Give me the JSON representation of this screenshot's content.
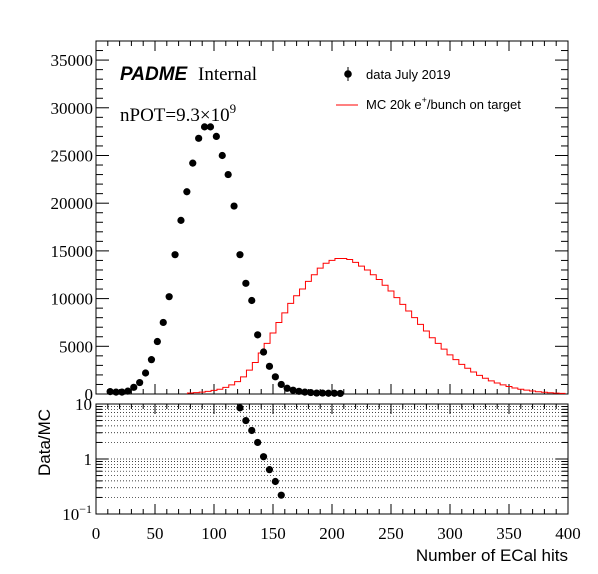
{
  "chart_data": [
    {
      "type": "scatter",
      "panel": "main",
      "xlim": [
        0,
        400
      ],
      "ylim": [
        0,
        37000
      ],
      "y_ticks": [
        0,
        5000,
        10000,
        15000,
        20000,
        25000,
        30000,
        35000
      ],
      "y_tick_labels": [
        "0",
        "5000",
        "10000",
        "15000",
        "20000",
        "25000",
        "30000",
        "35000"
      ],
      "grid": false,
      "legend_placement": "top-right",
      "annotations": {
        "experiment": "PADME",
        "status": "Internal",
        "npot_prefix": "nPOT=9.3×10",
        "npot_exponent": "9"
      },
      "legend": {
        "data_label": "data July 2019",
        "mc_label_prefix": "MC 20k e",
        "mc_label_sup": "+",
        "mc_label_suffix": "/bunch on target"
      },
      "series": [
        {
          "name": "data July 2019",
          "style": "markers",
          "color": "#000000",
          "x": [
            12,
            17,
            22,
            27,
            32,
            37,
            42,
            47,
            52,
            57,
            62,
            67,
            72,
            77,
            82,
            87,
            92,
            97,
            102,
            107,
            112,
            117,
            122,
            127,
            132,
            137,
            142,
            147,
            152,
            157,
            162,
            167,
            172,
            177,
            182,
            187,
            192,
            197,
            202,
            207
          ],
          "y": [
            250,
            200,
            200,
            300,
            700,
            1200,
            2200,
            3600,
            5500,
            7500,
            10200,
            14600,
            18200,
            21200,
            24200,
            26800,
            28000,
            28000,
            27000,
            25000,
            23000,
            19700,
            14600,
            11600,
            9800,
            6200,
            4400,
            2900,
            1800,
            1000,
            600,
            400,
            280,
            200,
            150,
            100,
            100,
            80,
            80,
            60
          ]
        },
        {
          "name": "MC 20k e+/bunch on target",
          "style": "step",
          "color": "#ff0000",
          "bin_width": 5,
          "x": [
            80,
            85,
            90,
            95,
            100,
            105,
            110,
            115,
            120,
            125,
            130,
            135,
            140,
            145,
            150,
            155,
            160,
            165,
            170,
            175,
            180,
            185,
            190,
            195,
            200,
            205,
            210,
            215,
            220,
            225,
            230,
            235,
            240,
            245,
            250,
            255,
            260,
            265,
            270,
            275,
            280,
            285,
            290,
            295,
            300,
            305,
            310,
            315,
            320,
            325,
            330,
            335,
            340,
            345,
            350,
            355,
            360,
            365,
            370,
            375,
            380,
            385,
            390,
            395
          ],
          "y": [
            100,
            150,
            200,
            280,
            380,
            500,
            700,
            950,
            1300,
            1800,
            2500,
            3300,
            4300,
            5300,
            6400,
            7500,
            8500,
            9500,
            10300,
            11000,
            11800,
            12500,
            13200,
            13700,
            14000,
            14200,
            14200,
            14100,
            13800,
            13400,
            13000,
            12500,
            12000,
            11400,
            10800,
            10100,
            9400,
            8700,
            8000,
            7300,
            6600,
            5900,
            5300,
            4700,
            4100,
            3600,
            3100,
            2700,
            2300,
            1950,
            1650,
            1380,
            1150,
            950,
            780,
            630,
            500,
            400,
            310,
            240,
            180,
            130,
            90,
            60
          ]
        }
      ]
    },
    {
      "type": "scatter",
      "panel": "ratio",
      "ylabel": "Data/MC",
      "xlabel": "Number of ECal hits",
      "xlim": [
        0,
        400
      ],
      "ylim": [
        0.1,
        10
      ],
      "y_scale": "log",
      "grid": true,
      "x_ticks": [
        0,
        50,
        100,
        150,
        200,
        250,
        300,
        350,
        400
      ],
      "x_tick_labels": [
        "0",
        "50",
        "100",
        "150",
        "200",
        "250",
        "300",
        "350",
        "400"
      ],
      "y_tick_labels": [
        {
          "value": 10,
          "base": "10",
          "exp": ""
        },
        {
          "value": 1,
          "base": "1",
          "exp": ""
        },
        {
          "value": 0.1,
          "base": "10",
          "exp": "−1"
        }
      ],
      "series": [
        {
          "name": "",
          "style": "markers",
          "color": "#000000",
          "x": [
            122,
            127,
            132,
            137,
            142,
            147,
            152,
            157
          ],
          "y": [
            8.5,
            5.0,
            3.3,
            2.0,
            1.1,
            0.64,
            0.39,
            0.22
          ]
        }
      ]
    }
  ]
}
